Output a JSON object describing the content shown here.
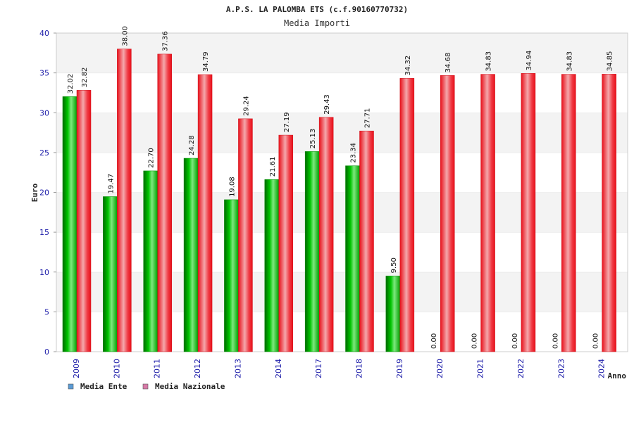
{
  "chart_data": {
    "type": "bar",
    "title": "A.P.S. LA PALOMBA ETS (c.f.90160770732)",
    "subtitle": "Media Importi",
    "xlabel": "Anno",
    "ylabel": "Euro",
    "ylim": [
      0,
      40
    ],
    "yticks": [
      "0",
      "5",
      "10",
      "15",
      "20",
      "25",
      "30",
      "35",
      "40"
    ],
    "grid": "horizontal alternating bands",
    "legend_position": "bottom-left",
    "categories": [
      "2009",
      "2010",
      "2011",
      "2012",
      "2013",
      "2014",
      "2017",
      "2018",
      "2019",
      "2020",
      "2021",
      "2022",
      "2023",
      "2024"
    ],
    "series": [
      {
        "name": "Media Ente",
        "color": "#00b000",
        "legend_color": "#5b9bd5",
        "values": [
          32.02,
          19.47,
          22.7,
          24.28,
          19.08,
          21.61,
          25.13,
          23.34,
          9.5,
          0.0,
          0.0,
          0.0,
          0.0,
          0.0
        ],
        "labels": [
          "32.02",
          "19.47",
          "22.70",
          "24.28",
          "19.08",
          "21.61",
          "25.13",
          "23.34",
          "9.50",
          "0.00",
          "0.00",
          "0.00",
          "0.00",
          "0.00"
        ]
      },
      {
        "name": "Media Nazionale",
        "color": "#e8202a",
        "legend_color": "#d87aa8",
        "values": [
          32.82,
          38.0,
          37.36,
          34.79,
          29.24,
          27.19,
          29.43,
          27.71,
          34.32,
          34.68,
          34.83,
          34.94,
          34.83,
          34.85
        ],
        "labels": [
          "32.82",
          "38.00",
          "37.36",
          "34.79",
          "29.24",
          "27.19",
          "29.43",
          "27.71",
          "34.32",
          "34.68",
          "34.83",
          "34.94",
          "34.83",
          "34.85"
        ]
      }
    ]
  }
}
